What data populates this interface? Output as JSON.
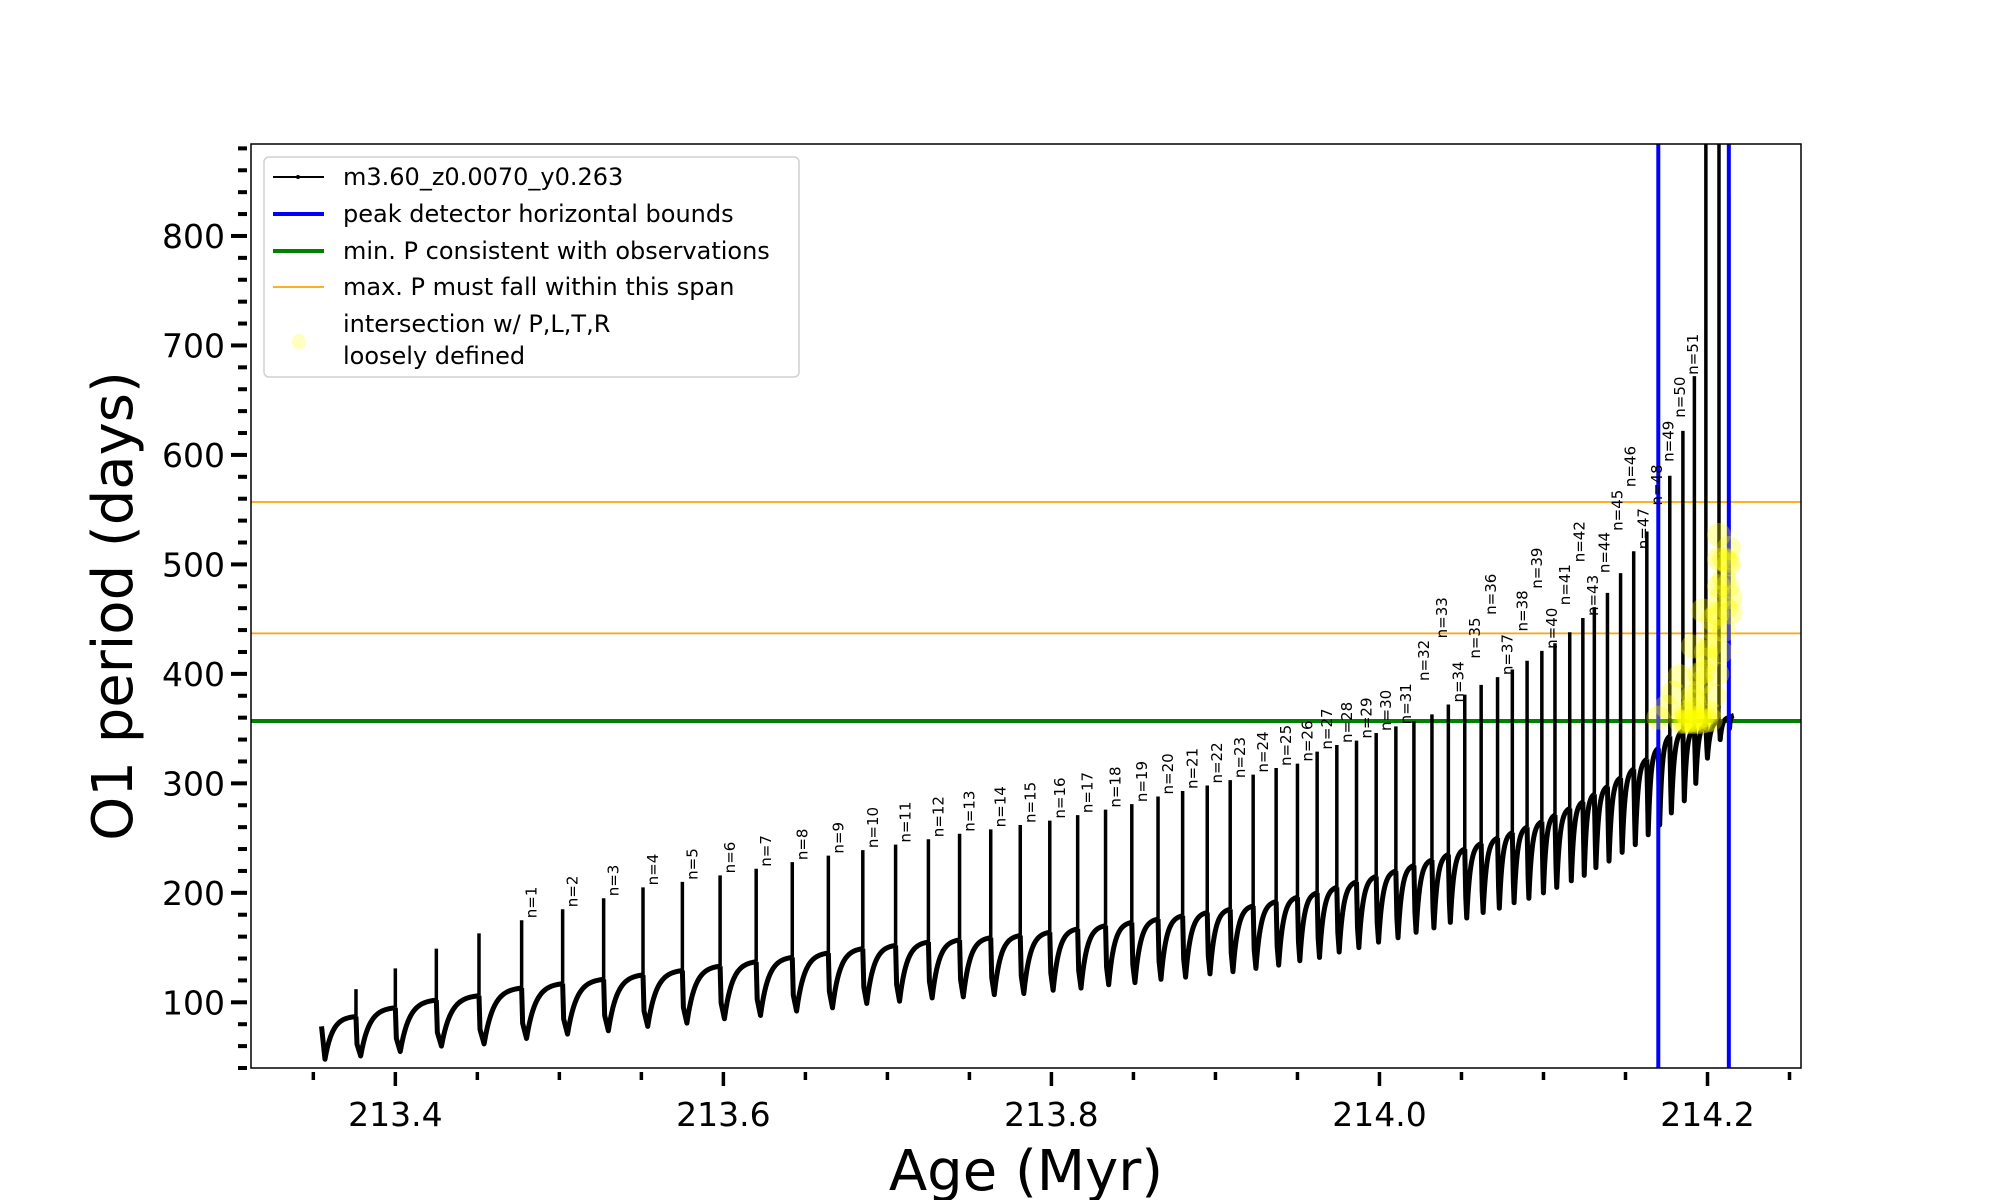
{
  "chart_data": {
    "type": "line",
    "title": "",
    "xlabel": "Age (Myr)",
    "ylabel": "O1 period (days)",
    "xlim": [
      213.312,
      214.257
    ],
    "ylim": [
      40,
      884
    ],
    "grid": false,
    "legend_position": "top-left",
    "x_ticks": [
      213.4,
      213.6,
      213.8,
      214.0,
      214.2
    ],
    "x_tick_labels": [
      "213.4",
      "213.6",
      "213.8",
      "214.0",
      "214.2"
    ],
    "y_ticks": [
      100,
      200,
      300,
      400,
      500,
      600,
      700,
      800
    ],
    "y_tick_labels": [
      "100",
      "200",
      "300",
      "400",
      "500",
      "600",
      "700",
      "800"
    ],
    "series": [
      {
        "name": "m3.60_z0.0070_y0.263",
        "color": "#000000",
        "start": {
          "age": 213.355,
          "period": 78,
          "dip": 48
        },
        "end": {
          "age": 214.216,
          "period": 362
        },
        "pulses": [
          {
            "age": 213.376,
            "plateau": 87,
            "peak": 112,
            "dip": 51,
            "label": ""
          },
          {
            "age": 213.4,
            "plateau": 95,
            "peak": 131,
            "dip": 55,
            "label": ""
          },
          {
            "age": 213.425,
            "plateau": 102,
            "peak": 149,
            "dip": 60,
            "label": ""
          },
          {
            "age": 213.451,
            "plateau": 106,
            "peak": 163,
            "dip": 62,
            "label": ""
          },
          {
            "age": 213.477,
            "plateau": 113,
            "peak": 175,
            "dip": 67,
            "label": "n=1"
          },
          {
            "age": 213.502,
            "plateau": 117,
            "peak": 185,
            "dip": 71,
            "label": "n=2"
          },
          {
            "age": 213.527,
            "plateau": 121,
            "peak": 195,
            "dip": 74,
            "label": "n=3"
          },
          {
            "age": 213.551,
            "plateau": 125,
            "peak": 205,
            "dip": 78,
            "label": "n=4"
          },
          {
            "age": 213.575,
            "plateau": 129,
            "peak": 210,
            "dip": 81,
            "label": "n=5"
          },
          {
            "age": 213.598,
            "plateau": 133,
            "peak": 216,
            "dip": 85,
            "label": "n=6"
          },
          {
            "age": 213.62,
            "plateau": 137,
            "peak": 222,
            "dip": 88,
            "label": "n=7"
          },
          {
            "age": 213.642,
            "plateau": 141,
            "peak": 228,
            "dip": 92,
            "label": "n=8"
          },
          {
            "age": 213.664,
            "plateau": 145,
            "peak": 234,
            "dip": 95,
            "label": "n=9"
          },
          {
            "age": 213.685,
            "plateau": 149,
            "peak": 239,
            "dip": 99,
            "label": "n=10"
          },
          {
            "age": 213.705,
            "plateau": 152,
            "peak": 244,
            "dip": 101,
            "label": "n=11"
          },
          {
            "age": 213.725,
            "plateau": 155,
            "peak": 249,
            "dip": 104,
            "label": "n=12"
          },
          {
            "age": 213.744,
            "plateau": 157,
            "peak": 254,
            "dip": 105,
            "label": "n=13"
          },
          {
            "age": 213.763,
            "plateau": 159,
            "peak": 258,
            "dip": 107,
            "label": "n=14"
          },
          {
            "age": 213.781,
            "plateau": 161,
            "peak": 262,
            "dip": 108,
            "label": "n=15"
          },
          {
            "age": 213.799,
            "plateau": 164,
            "peak": 266,
            "dip": 111,
            "label": "n=16"
          },
          {
            "age": 213.816,
            "plateau": 167,
            "peak": 271,
            "dip": 113,
            "label": "n=17"
          },
          {
            "age": 213.833,
            "plateau": 170,
            "peak": 276,
            "dip": 116,
            "label": "n=18"
          },
          {
            "age": 213.849,
            "plateau": 173,
            "peak": 281,
            "dip": 118,
            "label": "n=19"
          },
          {
            "age": 213.865,
            "plateau": 176,
            "peak": 288,
            "dip": 121,
            "label": "n=20"
          },
          {
            "age": 213.88,
            "plateau": 179,
            "peak": 293,
            "dip": 123,
            "label": "n=21"
          },
          {
            "age": 213.895,
            "plateau": 182,
            "peak": 298,
            "dip": 126,
            "label": "n=22"
          },
          {
            "age": 213.909,
            "plateau": 185,
            "peak": 303,
            "dip": 128,
            "label": "n=23"
          },
          {
            "age": 213.923,
            "plateau": 188,
            "peak": 308,
            "dip": 131,
            "label": "n=24"
          },
          {
            "age": 213.937,
            "plateau": 192,
            "peak": 314,
            "dip": 134,
            "label": "n=25"
          },
          {
            "age": 213.95,
            "plateau": 196,
            "peak": 318,
            "dip": 138,
            "label": "n=26"
          },
          {
            "age": 213.962,
            "plateau": 200,
            "peak": 329,
            "dip": 141,
            "label": "n=27"
          },
          {
            "age": 213.974,
            "plateau": 205,
            "peak": 335,
            "dip": 146,
            "label": "n=28"
          },
          {
            "age": 213.986,
            "plateau": 210,
            "peak": 339,
            "dip": 150,
            "label": "n=29"
          },
          {
            "age": 213.998,
            "plateau": 215,
            "peak": 346,
            "dip": 155,
            "label": "n=30"
          },
          {
            "age": 214.01,
            "plateau": 220,
            "peak": 352,
            "dip": 159,
            "label": "n=31"
          },
          {
            "age": 214.021,
            "plateau": 225,
            "peak": 357,
            "dip": 164,
            "label": "n=32"
          },
          {
            "age": 214.032,
            "plateau": 230,
            "peak": 363,
            "dip": 168,
            "label": "n=33"
          },
          {
            "age": 214.042,
            "plateau": 235,
            "peak": 372,
            "dip": 173,
            "label": "n=34"
          },
          {
            "age": 214.052,
            "plateau": 240,
            "peak": 381,
            "dip": 177,
            "label": "n=35"
          },
          {
            "age": 214.062,
            "plateau": 245,
            "peak": 390,
            "dip": 182,
            "label": "n=36"
          },
          {
            "age": 214.072,
            "plateau": 250,
            "peak": 397,
            "dip": 186,
            "label": "n=37"
          },
          {
            "age": 214.081,
            "plateau": 255,
            "peak": 404,
            "dip": 191,
            "label": "n=38"
          },
          {
            "age": 214.09,
            "plateau": 260,
            "peak": 412,
            "dip": 195,
            "label": "n=39"
          },
          {
            "age": 214.099,
            "plateau": 265,
            "peak": 421,
            "dip": 200,
            "label": "n=40"
          },
          {
            "age": 214.107,
            "plateau": 271,
            "peak": 428,
            "dip": 205,
            "label": "n=41"
          },
          {
            "age": 214.116,
            "plateau": 277,
            "peak": 438,
            "dip": 211,
            "label": "n=42"
          },
          {
            "age": 214.124,
            "plateau": 283,
            "peak": 451,
            "dip": 216,
            "label": "n=43"
          },
          {
            "age": 214.131,
            "plateau": 290,
            "peak": 461,
            "dip": 223,
            "label": "n=44"
          },
          {
            "age": 214.139,
            "plateau": 297,
            "peak": 474,
            "dip": 229,
            "label": "n=45"
          },
          {
            "age": 214.147,
            "plateau": 305,
            "peak": 492,
            "dip": 237,
            "label": "n=46"
          },
          {
            "age": 214.155,
            "plateau": 313,
            "peak": 512,
            "dip": 244,
            "label": "n=47"
          },
          {
            "age": 214.163,
            "plateau": 322,
            "peak": 530,
            "dip": 253,
            "label": "n=48"
          },
          {
            "age": 214.17,
            "plateau": 332,
            "peak": 548,
            "dip": 262,
            "label": "n=49"
          },
          {
            "age": 214.177,
            "plateau": 343,
            "peak": 581,
            "dip": 273,
            "label": "n=50"
          },
          {
            "age": 214.185,
            "plateau": 348,
            "peak": 622,
            "dip": 284,
            "label": "n=51"
          },
          {
            "age": 214.192,
            "plateau": 350,
            "peak": 672,
            "dip": 300,
            "label": ""
          },
          {
            "age": 214.199,
            "plateau": 354,
            "peak": 1000,
            "dip": 323,
            "label": ""
          },
          {
            "age": 214.207,
            "plateau": 357,
            "peak": 1000,
            "dip": 340,
            "label": ""
          },
          {
            "age": 214.213,
            "plateau": 360,
            "peak": 836,
            "dip": 350,
            "label": ""
          }
        ]
      }
    ],
    "hlines": [
      {
        "name": "min. P consistent with observations",
        "values": [
          357
        ],
        "color": "#008000"
      },
      {
        "name": "max. P must fall within this span",
        "values": [
          437,
          557
        ],
        "color": "#ffa500"
      }
    ],
    "vlines": {
      "name": "peak detector horizontal bounds",
      "values": [
        214.17,
        214.213
      ],
      "color": "#0000ff"
    },
    "scatter": {
      "name_lines": [
        "intersection w/ P,L,T,R",
        "loosely defined"
      ],
      "color": "#ffff00",
      "alpha": 0.3,
      "points": [
        [
          214.186,
          357
        ],
        [
          214.188,
          362
        ],
        [
          214.19,
          368
        ],
        [
          214.192,
          375
        ],
        [
          214.194,
          383
        ],
        [
          214.196,
          392
        ],
        [
          214.198,
          402
        ],
        [
          214.2,
          413
        ],
        [
          214.202,
          426
        ],
        [
          214.204,
          440
        ],
        [
          214.206,
          455
        ],
        [
          214.208,
          470
        ],
        [
          214.21,
          487
        ],
        [
          214.212,
          503
        ],
        [
          214.213,
          515
        ],
        [
          214.189,
          357
        ],
        [
          214.192,
          358
        ],
        [
          214.195,
          360
        ],
        [
          214.198,
          362
        ],
        [
          214.201,
          365
        ],
        [
          214.204,
          380
        ],
        [
          214.206,
          400
        ],
        [
          214.208,
          420
        ],
        [
          214.21,
          440
        ],
        [
          214.211,
          460
        ],
        [
          214.212,
          480
        ],
        [
          214.213,
          500
        ],
        [
          214.184,
          356
        ],
        [
          214.187,
          356
        ],
        [
          214.19,
          356
        ],
        [
          214.193,
          356
        ],
        [
          214.196,
          356
        ],
        [
          214.199,
          357
        ],
        [
          214.202,
          358
        ],
        [
          214.187,
          365
        ],
        [
          214.191,
          380
        ],
        [
          214.195,
          400
        ],
        [
          214.199,
          420
        ],
        [
          214.203,
          450
        ],
        [
          214.207,
          480
        ],
        [
          214.21,
          505
        ],
        [
          214.17,
          360
        ],
        [
          214.175,
          370
        ],
        [
          214.179,
          383
        ],
        [
          214.183,
          398
        ],
        [
          214.191,
          425
        ],
        [
          214.197,
          458
        ],
        [
          214.207,
          527
        ],
        [
          214.214,
          456
        ],
        [
          214.214,
          470
        ],
        [
          214.207,
          505
        ]
      ]
    }
  }
}
